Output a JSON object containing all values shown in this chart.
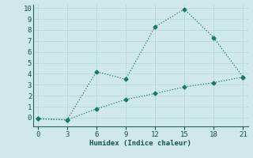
{
  "line1_x": [
    0,
    3,
    6,
    9,
    12,
    15,
    18,
    21
  ],
  "line1_y": [
    -0.1,
    -0.2,
    4.2,
    3.5,
    8.3,
    9.9,
    7.3,
    3.7
  ],
  "line2_x": [
    0,
    3,
    6,
    9,
    12,
    15,
    18,
    21
  ],
  "line2_y": [
    -0.1,
    -0.2,
    0.8,
    1.65,
    2.2,
    2.8,
    3.2,
    3.7
  ],
  "color": "#1a7a6a",
  "xlabel": "Humidex (Indice chaleur)",
  "xlim": [
    -0.5,
    21.5
  ],
  "ylim": [
    -0.8,
    10.3
  ],
  "xticks": [
    0,
    3,
    6,
    9,
    12,
    15,
    18,
    21
  ],
  "yticks": [
    0,
    1,
    2,
    3,
    4,
    5,
    6,
    7,
    8,
    9,
    10
  ],
  "bg_color": "#cfe8ec",
  "grid_color": "#b8d8dc",
  "axis_color": "#2a6060",
  "tick_label_color": "#1a5050",
  "xlabel_color": "#1a5050"
}
